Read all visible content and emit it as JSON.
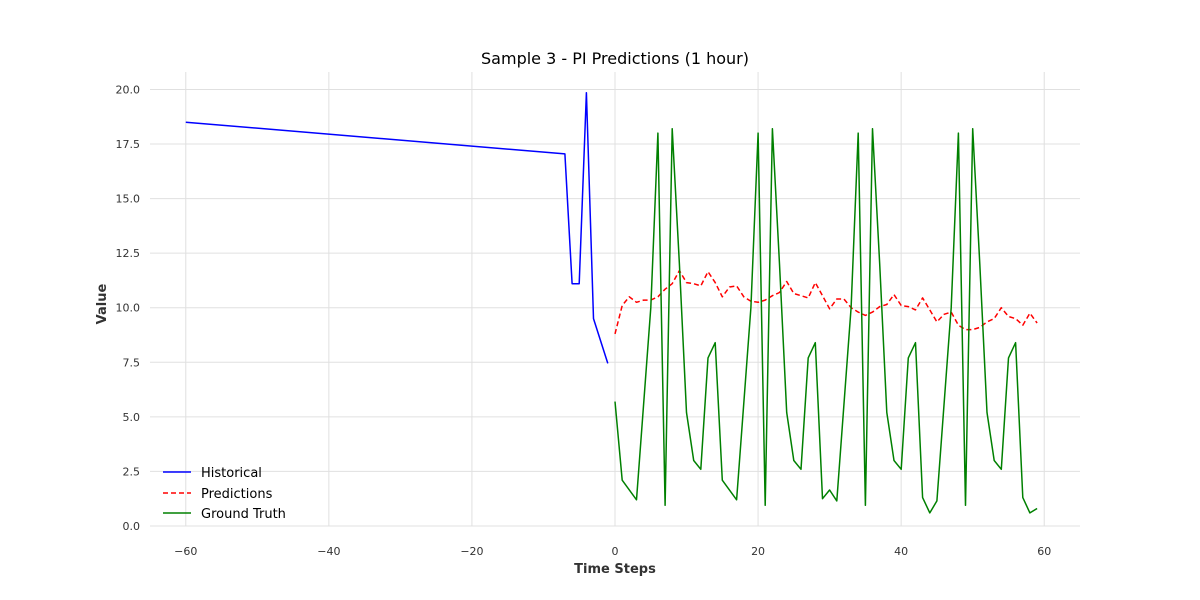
{
  "chart_data": {
    "type": "line",
    "title": "Sample 3 - PI Predictions (1 hour)",
    "xlabel": "Time Steps",
    "ylabel": "Value",
    "xlim": [
      -65,
      65
    ],
    "ylim": [
      0,
      20.8
    ],
    "xticks": [
      -60,
      -40,
      -20,
      0,
      20,
      40,
      60
    ],
    "xtick_labels": [
      "−60",
      "−40",
      "−20",
      "0",
      "20",
      "40",
      "60"
    ],
    "yticks": [
      0,
      2.5,
      5,
      7.5,
      10,
      12.5,
      15,
      17.5,
      20
    ],
    "ytick_labels": [
      "0.0",
      "2.5",
      "5.0",
      "7.5",
      "10.0",
      "12.5",
      "15.0",
      "17.5",
      "20.0"
    ],
    "grid": true,
    "legend_position": "bottom-left",
    "series": [
      {
        "name": "Historical",
        "color": "#0000ff",
        "style": "solid",
        "x": [
          -60,
          -7,
          -6,
          -5,
          -4,
          -3,
          -1
        ],
        "y": [
          18.5,
          17.05,
          11.1,
          11.1,
          19.85,
          9.5,
          7.45
        ]
      },
      {
        "name": "Predictions",
        "color": "#ff0000",
        "style": "dashed",
        "x": [
          0,
          1,
          2,
          3,
          4,
          5,
          6,
          7,
          8,
          9,
          10,
          11,
          12,
          13,
          14,
          15,
          16,
          17,
          18,
          19,
          20,
          21,
          22,
          23,
          24,
          25,
          26,
          27,
          28,
          29,
          30,
          31,
          32,
          33,
          34,
          35,
          36,
          37,
          38,
          39,
          40,
          41,
          42,
          43,
          44,
          45,
          46,
          47,
          48,
          49,
          50,
          51,
          52,
          53,
          54,
          55,
          56,
          57,
          58,
          59
        ],
        "y": [
          8.8,
          10.1,
          10.5,
          10.25,
          10.35,
          10.35,
          10.5,
          10.85,
          11.1,
          11.7,
          11.15,
          11.1,
          11.0,
          11.65,
          11.15,
          10.5,
          10.95,
          11.0,
          10.5,
          10.3,
          10.25,
          10.35,
          10.55,
          10.7,
          11.2,
          10.65,
          10.55,
          10.45,
          11.15,
          10.55,
          9.95,
          10.4,
          10.4,
          10.0,
          9.8,
          9.65,
          9.8,
          10.05,
          10.15,
          10.6,
          10.1,
          10.05,
          9.9,
          10.45,
          9.9,
          9.35,
          9.7,
          9.8,
          9.2,
          9.0,
          9.0,
          9.1,
          9.35,
          9.5,
          10.0,
          9.6,
          9.5,
          9.2,
          9.75,
          9.3
        ]
      },
      {
        "name": "Ground Truth",
        "color": "#008000",
        "style": "solid",
        "x": [
          0,
          1,
          3,
          5,
          6,
          7,
          8,
          9,
          10,
          11,
          12,
          13,
          14,
          15,
          17,
          19,
          20,
          21,
          22,
          23,
          24,
          25,
          26,
          27,
          28,
          29,
          30,
          31,
          33,
          34,
          35,
          36,
          37,
          38,
          39,
          40,
          41,
          42,
          43,
          44,
          45,
          47,
          48,
          49,
          50,
          51,
          52,
          53,
          54,
          55,
          56,
          57,
          58,
          59
        ],
        "y": [
          5.7,
          2.1,
          1.2,
          10.0,
          18.0,
          0.95,
          18.2,
          12.0,
          5.2,
          3.0,
          2.6,
          7.7,
          8.4,
          2.1,
          1.2,
          10.0,
          18.0,
          0.95,
          18.2,
          12.0,
          5.2,
          3.0,
          2.6,
          7.7,
          8.4,
          1.25,
          1.65,
          1.15,
          10.0,
          18.0,
          0.95,
          18.2,
          12.0,
          5.2,
          3.0,
          2.6,
          7.7,
          8.4,
          1.3,
          0.6,
          1.15,
          10.0,
          18.0,
          0.95,
          18.2,
          12.0,
          5.2,
          3.0,
          2.6,
          7.7,
          8.4,
          1.3,
          0.6,
          0.8
        ]
      }
    ]
  }
}
